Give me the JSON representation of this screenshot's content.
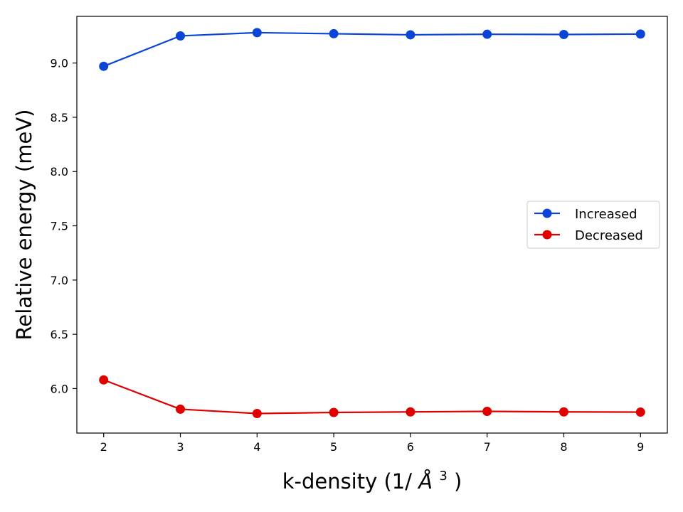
{
  "chart_data": {
    "type": "line",
    "title": "",
    "xlabel": "k-density (1/",
    "xlabel_symbol": "Å",
    "xlabel_power": "3",
    "xlabel_close": ")",
    "ylabel": "Relative energy (meV)",
    "x": [
      2,
      3,
      4,
      5,
      6,
      7,
      8,
      9
    ],
    "xlim": [
      1.65,
      9.35
    ],
    "ylim": [
      5.59,
      9.43
    ],
    "xticks": [
      2,
      3,
      4,
      5,
      6,
      7,
      8,
      9
    ],
    "yticks": [
      6.0,
      6.5,
      7.0,
      7.5,
      8.0,
      8.5,
      9.0
    ],
    "xtick_labels": [
      "2",
      "3",
      "4",
      "5",
      "6",
      "7",
      "8",
      "9"
    ],
    "ytick_labels": [
      "6.0",
      "6.5",
      "7.0",
      "7.5",
      "8.0",
      "8.5",
      "9.0"
    ],
    "grid": false,
    "legend": {
      "placement": "center-right"
    },
    "series": [
      {
        "name": "Increased",
        "color": "#0b45d8",
        "values": [
          8.97,
          9.25,
          9.28,
          9.27,
          9.26,
          9.265,
          9.263,
          9.267
        ]
      },
      {
        "name": "Decreased",
        "color": "#e00000",
        "values": [
          6.08,
          5.81,
          5.77,
          5.78,
          5.785,
          5.79,
          5.785,
          5.783
        ]
      }
    ]
  }
}
